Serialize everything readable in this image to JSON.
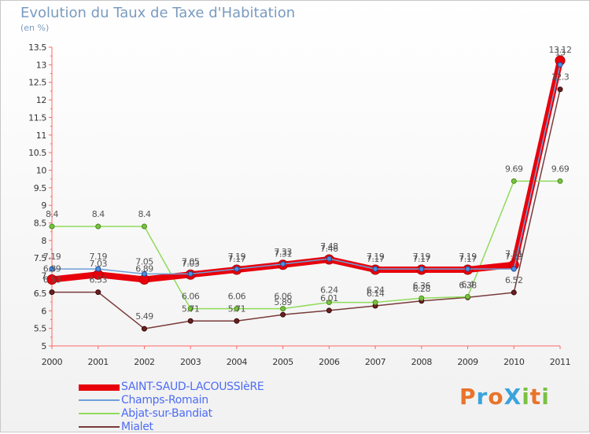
{
  "title": "Evolution du Taux de Taxe d'Habitation",
  "unit": "(en %)",
  "brand": {
    "text": "ProXiti",
    "colors": [
      "#e8742a",
      "#3ca3dc",
      "#e8742a",
      "#3ca3dc",
      "#7ac143",
      "#e8742a",
      "#7ac143"
    ]
  },
  "chart_data": {
    "type": "line",
    "title": "Evolution du Taux de Taxe d'Habitation",
    "ylabel": "(en %)",
    "xlabel": "",
    "x": [
      2000,
      2001,
      2002,
      2003,
      2004,
      2005,
      2006,
      2007,
      2008,
      2009,
      2010,
      2011
    ],
    "ylim": [
      5,
      13.5
    ],
    "yticks": [
      "5",
      "5.5",
      "6",
      "6.5",
      "7",
      "7.5",
      "8",
      "8.5",
      "9",
      "9.5",
      "10",
      "10.5",
      "11",
      "11.5",
      "12",
      "12.5",
      "13",
      "13.5"
    ],
    "grid": false,
    "legend": "bottom-left",
    "series": [
      {
        "name": "SAINT-SAUD-LACOUSSIèRE",
        "color": "#e8000b",
        "values": [
          6.89,
          7.03,
          6.89,
          7.03,
          7.17,
          7.31,
          7.46,
          7.17,
          7.17,
          7.17,
          7.31,
          13.12
        ],
        "labels": [
          "6.89",
          "7.03",
          "6.89",
          "7.03",
          "7.17",
          "7.31",
          "7.46",
          "7.17",
          "7.17",
          "7.17",
          "7.31",
          "13.12"
        ]
      },
      {
        "name": "Champs-Romain",
        "color": "#6fa0d8",
        "values": [
          7.19,
          7.19,
          7.05,
          7.05,
          7.19,
          7.33,
          7.48,
          7.19,
          7.19,
          7.19,
          7.19,
          13
        ],
        "labels": [
          "7.19",
          "7.19",
          "7.05",
          "7.05",
          "7.19",
          "7.33",
          "7.48",
          "7.19",
          "7.19",
          "7.19",
          "7.19",
          "13"
        ]
      },
      {
        "name": "Abjat-sur-Bandiat",
        "color": "#8fdc5a",
        "values": [
          8.4,
          8.4,
          8.4,
          6.06,
          6.06,
          6.06,
          6.24,
          6.24,
          6.36,
          6.4,
          9.69,
          9.69
        ],
        "labels": [
          "8.4",
          "8.4",
          "8.4",
          "6.06",
          "6.06",
          "6.06",
          "6.24",
          "6.24",
          "6.36",
          "6.4",
          "9.69",
          "9.69"
        ]
      },
      {
        "name": "Mialet",
        "color": "#7a3a3a",
        "values": [
          6.53,
          6.53,
          5.49,
          5.71,
          5.71,
          5.89,
          6.01,
          6.14,
          6.28,
          6.38,
          6.52,
          12.3
        ],
        "labels": [
          "6.53",
          "6.53",
          "5.49",
          "5.71",
          "5.71",
          "5.89",
          "6.01",
          "6.14",
          "6.28",
          "6.38",
          "6.52",
          "12.3"
        ]
      }
    ]
  }
}
